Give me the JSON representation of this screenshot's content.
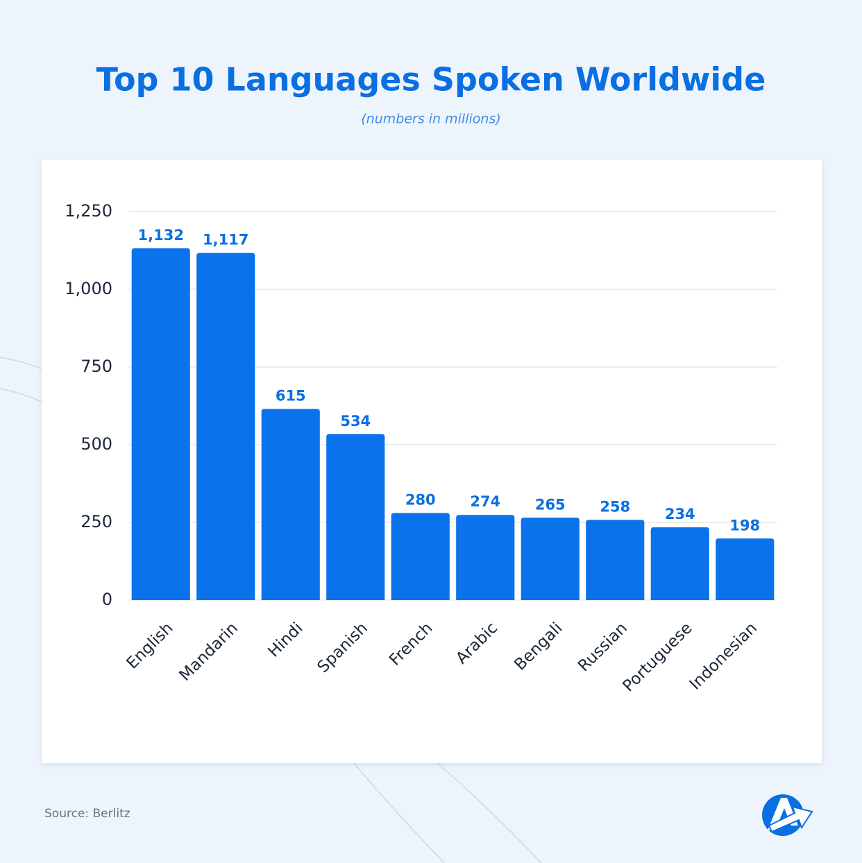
{
  "chart_data": {
    "type": "bar",
    "title": "Top 10 Languages Spoken Worldwide",
    "subtitle": "(numbers in millions)",
    "source": "Source: Berlitz",
    "categories": [
      "English",
      "Mandarin",
      "Hindi",
      "Spanish",
      "French",
      "Arabic",
      "Bengali",
      "Russian",
      "Portuguese",
      "Indonesian"
    ],
    "values": [
      1132,
      1117,
      615,
      534,
      280,
      274,
      265,
      258,
      234,
      198
    ],
    "value_labels": [
      "1,132",
      "1,117",
      "615",
      "534",
      "280",
      "274",
      "265",
      "258",
      "234",
      "198"
    ],
    "color": "#0a73eb",
    "ylim": [
      0,
      1250
    ],
    "yticks": [
      0,
      250,
      500,
      750,
      {
        "value": 1000,
        "label": "1,000"
      },
      {
        "value": 1250,
        "label": "1,250"
      }
    ],
    "grid": true
  }
}
